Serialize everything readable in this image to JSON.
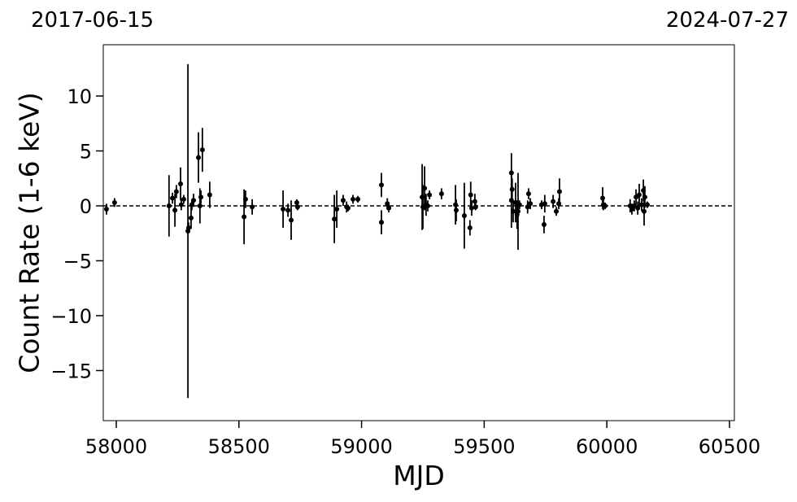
{
  "chart_data": {
    "type": "errorbar-scatter",
    "annotations": [
      "2017-06-15",
      "2024-07-27"
    ],
    "xlabel": "MJD",
    "ylabel": "Count Rate (1-6 keV)",
    "xlim": [
      57947,
      60520
    ],
    "ylim": [
      -19.56,
      14.67
    ],
    "xticks": [
      58000,
      58500,
      59000,
      59500,
      60000,
      60500
    ],
    "yticks": [
      {
        "value": -15,
        "label": "−15"
      },
      {
        "value": -10,
        "label": "−10"
      },
      {
        "value": -5,
        "label": "−5"
      },
      0,
      5,
      10
    ],
    "hline": 0,
    "color": "#000000",
    "x": [
      57960,
      57993,
      58215,
      58229,
      58239,
      58245,
      58262,
      58265,
      58275,
      58292,
      58295,
      58305,
      58308,
      58315,
      58335,
      58341,
      58345,
      58351,
      58381,
      58521,
      58527,
      58554,
      58680,
      58700,
      58713,
      58736,
      58739,
      58889,
      58899,
      58925,
      58939,
      58945,
      58965,
      58985,
      59081,
      59081,
      59105,
      59111,
      59247,
      59250,
      59257,
      59263,
      59270,
      59277,
      59326,
      59383,
      59386,
      59419,
      59442,
      59445,
      59449,
      59462,
      59465,
      59611,
      59614,
      59611,
      59618,
      59628,
      59634,
      59638,
      59644,
      59677,
      59681,
      59688,
      59734,
      59744,
      59747,
      59781,
      59794,
      59804,
      59807,
      59983,
      59986,
      59993,
      60095,
      60102,
      60112,
      60119,
      60126,
      60132,
      60142,
      60149,
      60152,
      60155,
      60165
    ],
    "values": [
      -0.3,
      0.3,
      0,
      0.7,
      -0.4,
      1.3,
      2.0,
      0.1,
      0.6,
      -2.3,
      -2.0,
      -1.1,
      0.1,
      0.5,
      4.4,
      0,
      0.8,
      5.1,
      1.0,
      -1.0,
      0.6,
      -0.1,
      -0.3,
      -0.4,
      -1.3,
      0.3,
      -0.1,
      -1.2,
      -0.3,
      0.5,
      -0.1,
      -0.2,
      0.6,
      0.6,
      1.9,
      -1.5,
      0.2,
      -0.2,
      0.8,
      -0.1,
      1.6,
      0.1,
      0,
      1.0,
      1.1,
      0.1,
      -0.4,
      -0.9,
      -2.0,
      1.0,
      -0.2,
      0.4,
      -0.1,
      3.0,
      1.5,
      0.5,
      -0.5,
      0.3,
      -0.8,
      -0.5,
      0.1,
      -0.1,
      1.1,
      0.2,
      0.1,
      -1.7,
      0.2,
      0.4,
      -0.5,
      0.2,
      1.3,
      0.7,
      0.1,
      0,
      0,
      -0.3,
      0,
      0.8,
      -0.2,
      1.0,
      0.1,
      1.4,
      -0.5,
      0.8,
      0.1
    ],
    "errors": [
      0.5,
      0.4,
      2.8,
      0.5,
      1.5,
      0.6,
      1.5,
      0.5,
      0.4,
      15.2,
      0.5,
      1.0,
      0.5,
      0.6,
      2.3,
      1.6,
      0.6,
      2.0,
      1.2,
      2.5,
      0.8,
      0.7,
      1.7,
      0.6,
      1.8,
      0.3,
      0.3,
      2.2,
      1.7,
      0.5,
      0.5,
      0.3,
      0.4,
      0.3,
      1.1,
      1.1,
      0.5,
      0.4,
      3.0,
      2.0,
      2.0,
      1.0,
      0.5,
      0.4,
      0.5,
      1.8,
      1.0,
      3.0,
      0.7,
      1.2,
      0.7,
      0.7,
      0.3,
      1.8,
      1.0,
      2.5,
      1.0,
      1.8,
      1.3,
      3.5,
      0.4,
      0.6,
      0.5,
      0.5,
      0.4,
      0.8,
      0.8,
      0.6,
      0.4,
      0.5,
      1.2,
      1.0,
      0.5,
      0.3,
      0.6,
      0.5,
      0.5,
      0.7,
      0.6,
      1.0,
      0.6,
      1.0,
      1.3,
      1.0,
      0.3
    ]
  }
}
